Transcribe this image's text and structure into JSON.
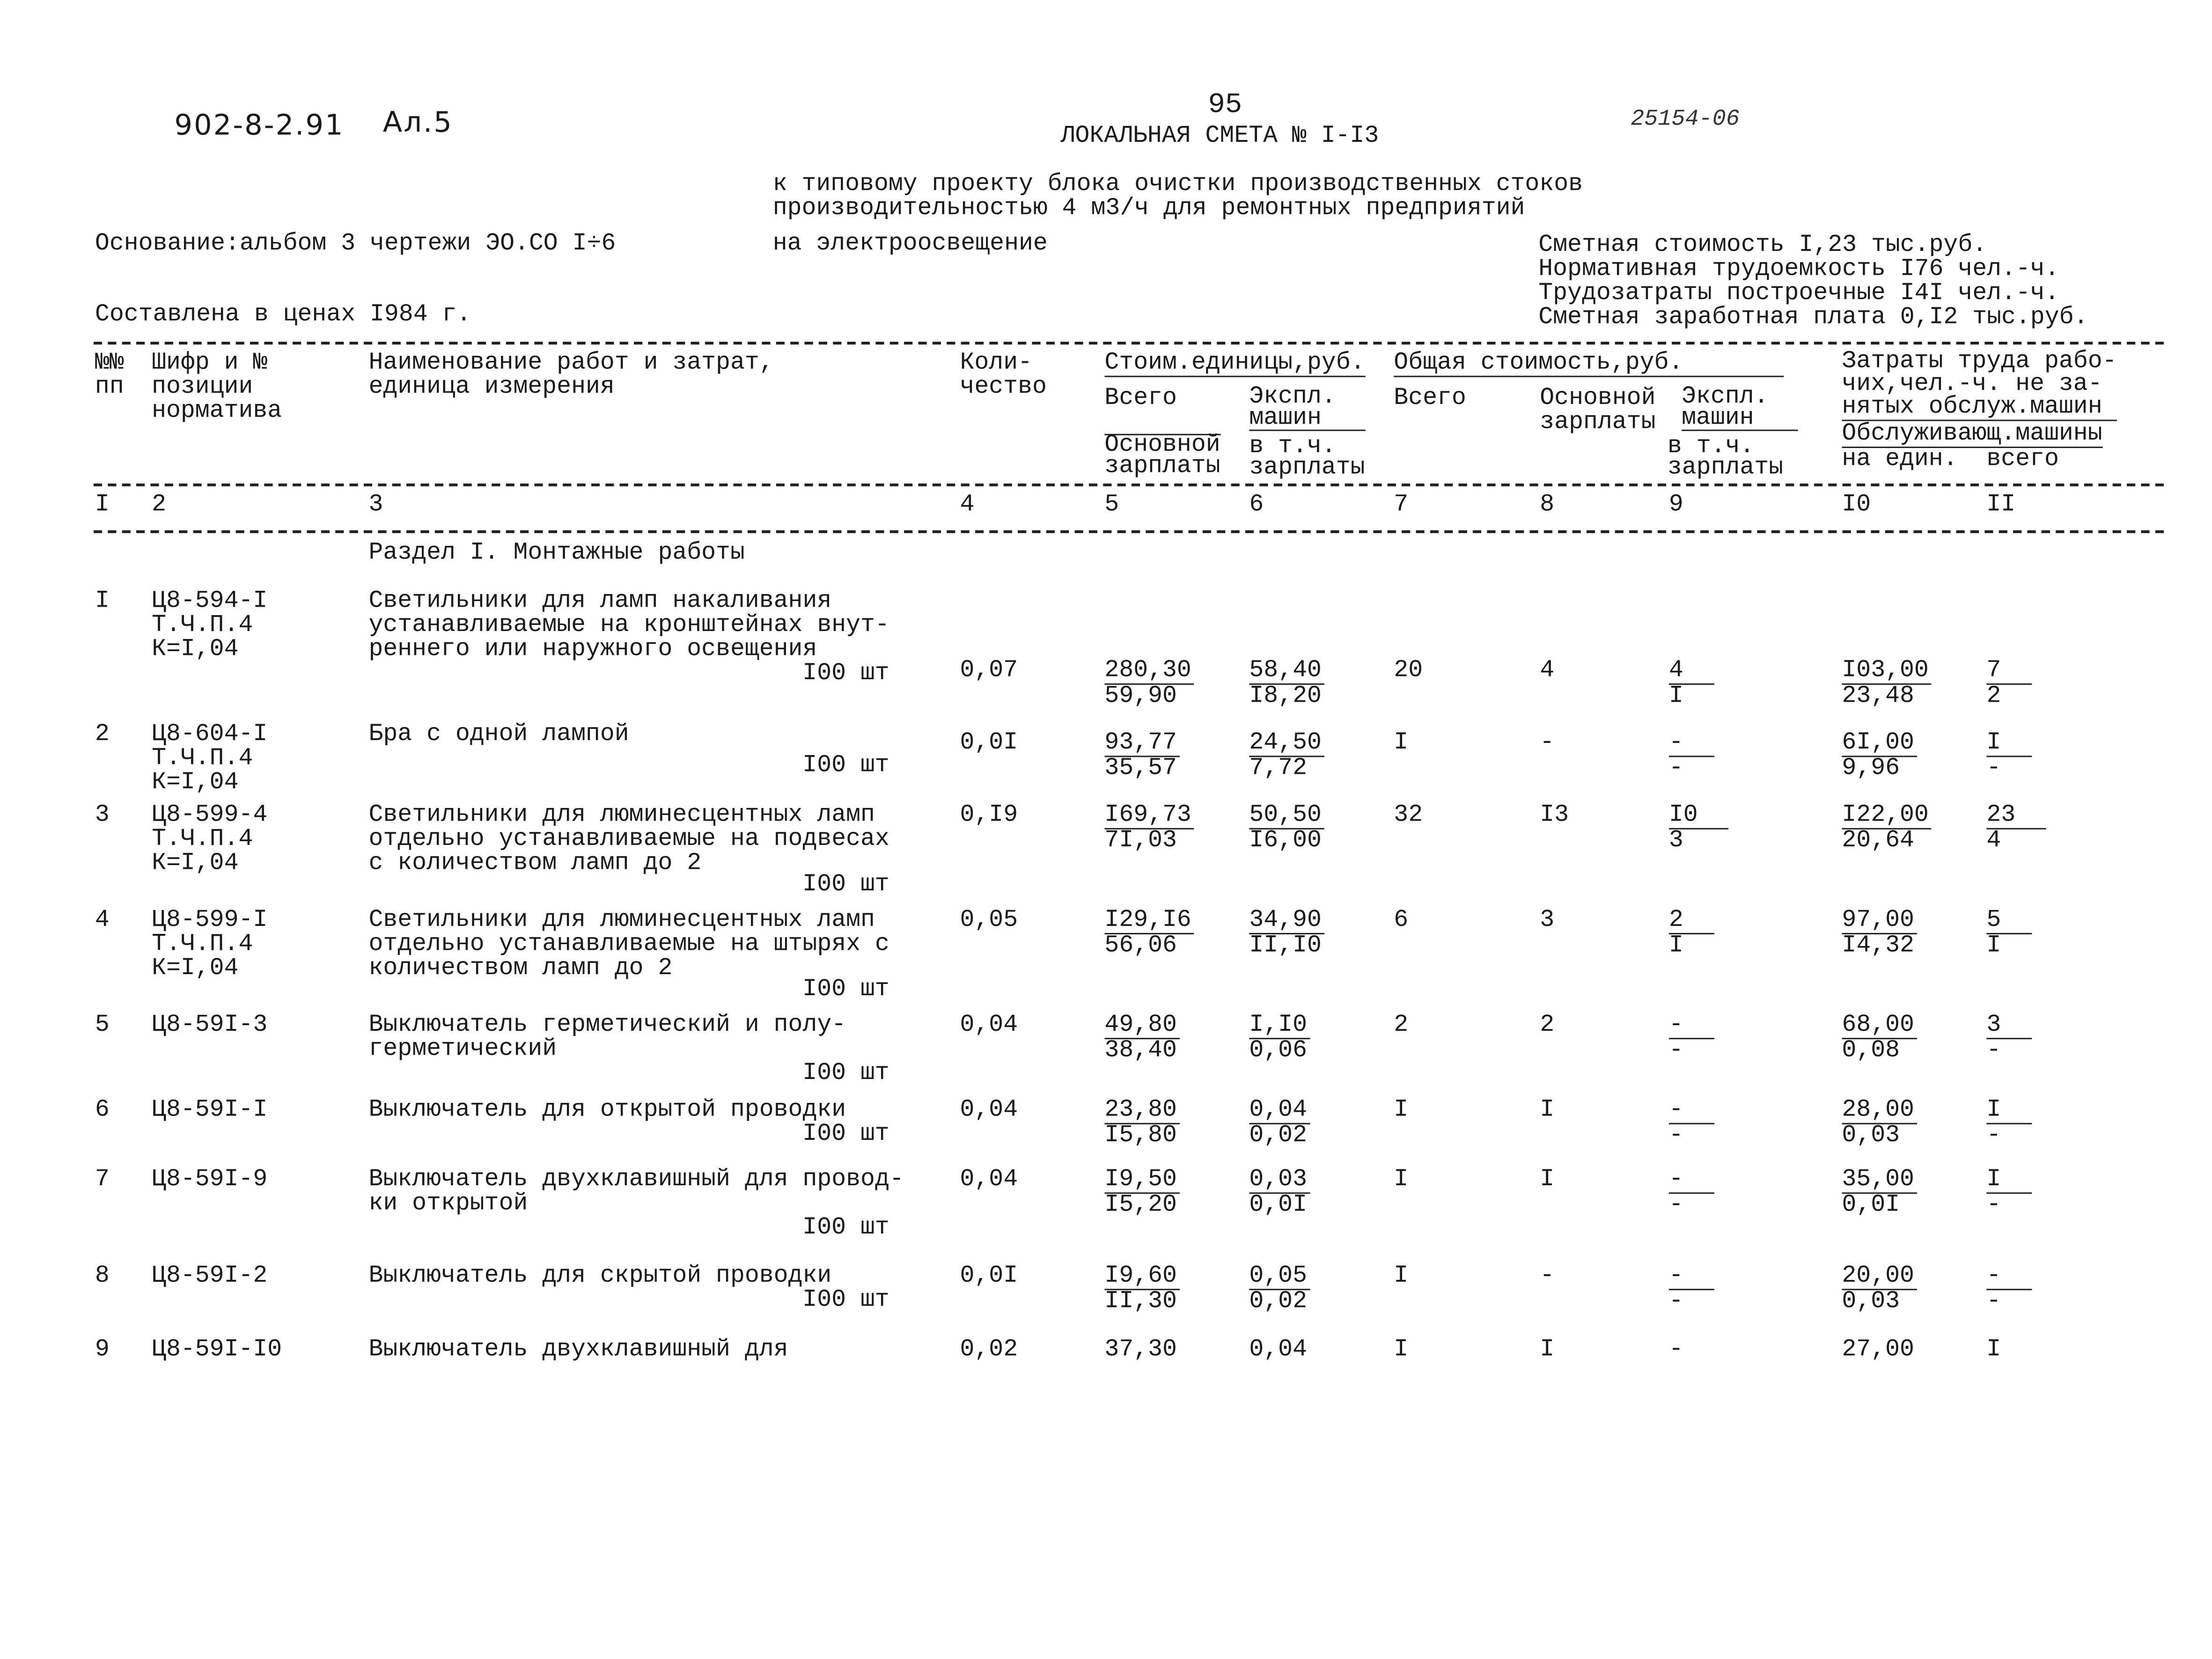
{
  "header": {
    "project_code": "902-8-2.91",
    "album": "Ал.5",
    "page_number": "95",
    "title": "ЛОКАЛЬНАЯ СМЕТА № I-I3",
    "handwritten_number": "25154-06",
    "subtitle_lines": [
      "к типовому проекту блока очистки производственных стоков",
      "производительностью 4 м3/ч для ремонтных предприятий",
      "на электроосвещение"
    ],
    "basis": "Основание:альбом 3 чертежи ЭО.СО I÷6",
    "prices": "Составлена в ценах I984 г.",
    "summary": [
      "Сметная стоимость I,23 тыс.руб.",
      "Нормативная трудоемкость I76 чел.-ч.",
      "Трудозатраты построечные I4I чел.-ч.",
      "Сметная заработная плата 0,I2 тыс.руб."
    ]
  },
  "table": {
    "headers": {
      "num": "№№\nпп",
      "code": "Шифр и №\nпозиции\nнорматива",
      "name": "Наименование работ и затрат,\nединица измерения",
      "qty": "Коли-\nчество",
      "unit_cost_group": "Стоим.единицы,руб.",
      "total_cost_group": "Общая стоимость,руб.",
      "c5_top": "Всего",
      "c5_bottom": "Основной\nзарплаты",
      "c6_top": "Экспл.\nмашин",
      "c6_bottom": "в т.ч.\nзарплаты",
      "c7": "Всего",
      "c8": "Основной\nзарплаты",
      "c9_top": "Экспл.\nмашин",
      "c9_bottom": "в т.ч.\nзарплаты",
      "labor_group": "Затраты труда рабо-\nчих,чел.-ч. не за-\nнятых обслуж.машин",
      "labor_sub": "Обслуживающ.машины",
      "c10": "на един.",
      "c11": "всего"
    },
    "column_numbers": [
      "I",
      "2",
      "3",
      "4",
      "5",
      "6",
      "7",
      "8",
      "9",
      "I0",
      "II"
    ],
    "section_title": "Раздел I. Монтажные работы",
    "rows": [
      {
        "num": "I",
        "code": [
          "Ц8-594-I",
          "Т.Ч.П.4",
          "К=I,04"
        ],
        "name": [
          "Светильники для ламп накаливания",
          "устанавливаемые на кронштейнах внут-",
          "реннего или наружного освещения"
        ],
        "unit": "I00 шт",
        "qty": "0,07",
        "c5": [
          "280,30",
          "59,90"
        ],
        "c6": [
          "58,40",
          "I8,20"
        ],
        "c7": "20",
        "c8": "4",
        "c9": [
          "4",
          "I"
        ],
        "c10": [
          "I03,00",
          "23,48"
        ],
        "c11": [
          "7",
          "2"
        ]
      },
      {
        "num": "2",
        "code": [
          "Ц8-604-I",
          "Т.Ч.П.4",
          "К=I,04"
        ],
        "name": [
          "Бра с одной лампой"
        ],
        "unit": "I00 шт",
        "qty": "0,0I",
        "c5": [
          "93,77",
          "35,57"
        ],
        "c6": [
          "24,50",
          "7,72"
        ],
        "c7": "I",
        "c8": "-",
        "c9": [
          "-",
          "-"
        ],
        "c10": [
          "6I,00",
          "9,96"
        ],
        "c11": [
          "I",
          "-"
        ]
      },
      {
        "num": "3",
        "code": [
          "Ц8-599-4",
          "Т.Ч.П.4",
          "К=I,04"
        ],
        "name": [
          "Светильники для люминесцентных ламп",
          "отдельно устанавливаемые на подвесах",
          "с количеством ламп до 2"
        ],
        "unit": "I00 шт",
        "qty": "0,I9",
        "c5": [
          "I69,73",
          "7I,03"
        ],
        "c6": [
          "50,50",
          "I6,00"
        ],
        "c7": "32",
        "c8": "I3",
        "c9": [
          "I0",
          "3"
        ],
        "c10": [
          "I22,00",
          "20,64"
        ],
        "c11": [
          "23",
          "4"
        ]
      },
      {
        "num": "4",
        "code": [
          "Ц8-599-I",
          "Т.Ч.П.4",
          "К=I,04"
        ],
        "name": [
          "Светильники для люминесцентных ламп",
          "отдельно устанавливаемые на штырях с",
          "количеством ламп до 2"
        ],
        "unit": "I00 шт",
        "qty": "0,05",
        "c5": [
          "I29,I6",
          "56,06"
        ],
        "c6": [
          "34,90",
          "II,I0"
        ],
        "c7": "6",
        "c8": "3",
        "c9": [
          "2",
          "I"
        ],
        "c10": [
          "97,00",
          "I4,32"
        ],
        "c11": [
          "5",
          "I"
        ]
      },
      {
        "num": "5",
        "code": [
          "Ц8-59I-3"
        ],
        "name": [
          "Выключатель герметический и полу-",
          "герметический"
        ],
        "unit": "I00 шт",
        "qty": "0,04",
        "c5": [
          "49,80",
          "38,40"
        ],
        "c6": [
          "I,I0",
          "0,06"
        ],
        "c7": "2",
        "c8": "2",
        "c9": [
          "-",
          "-"
        ],
        "c10": [
          "68,00",
          "0,08"
        ],
        "c11": [
          "3",
          "-"
        ]
      },
      {
        "num": "6",
        "code": [
          "Ц8-59I-I"
        ],
        "name": [
          "Выключатель для открытой проводки"
        ],
        "unit": "I00 шт",
        "qty": "0,04",
        "c5": [
          "23,80",
          "I5,80"
        ],
        "c6": [
          "0,04",
          "0,02"
        ],
        "c7": "I",
        "c8": "I",
        "c9": [
          "-",
          "-"
        ],
        "c10": [
          "28,00",
          "0,03"
        ],
        "c11": [
          "I",
          "-"
        ]
      },
      {
        "num": "7",
        "code": [
          "Ц8-59I-9"
        ],
        "name": [
          "Выключатель двухклавишный для провод-",
          "ки открытой"
        ],
        "unit": "I00 шт",
        "qty": "0,04",
        "c5": [
          "I9,50",
          "I5,20"
        ],
        "c6": [
          "0,03",
          "0,0I"
        ],
        "c7": "I",
        "c8": "I",
        "c9": [
          "-",
          "-"
        ],
        "c10": [
          "35,00",
          "0,0I"
        ],
        "c11": [
          "I",
          "-"
        ]
      },
      {
        "num": "8",
        "code": [
          "Ц8-59I-2"
        ],
        "name": [
          "Выключатель для скрытой проводки"
        ],
        "unit": "I00 шт",
        "qty": "0,0I",
        "c5": [
          "I9,60",
          "II,30"
        ],
        "c6": [
          "0,05",
          "0,02"
        ],
        "c7": "I",
        "c8": "-",
        "c9": [
          "-",
          "-"
        ],
        "c10": [
          "20,00",
          "0,03"
        ],
        "c11": [
          "-",
          "-"
        ]
      },
      {
        "num": "9",
        "code": [
          "Ц8-59I-I0"
        ],
        "name": [
          "Выключатель двухклавишный для"
        ],
        "unit": "",
        "qty": "0,02",
        "c5": [
          "37,30"
        ],
        "c6": [
          "0,04"
        ],
        "c7": "I",
        "c8": "I",
        "c9": [
          "-"
        ],
        "c10": [
          "27,00"
        ],
        "c11": [
          "I"
        ]
      }
    ]
  }
}
